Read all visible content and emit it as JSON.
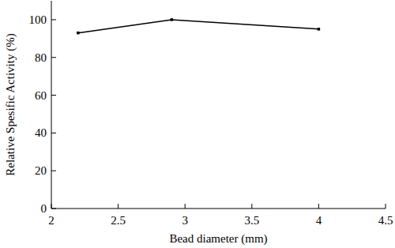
{
  "chart_data": {
    "type": "line",
    "x_label": "Bead diameter (mm)",
    "y_label": "Relative Spesific Activity (%)",
    "x": [
      2.2,
      2.9,
      4
    ],
    "values": [
      93,
      100,
      95
    ],
    "color": "#000000",
    "marker": "square",
    "xlim": [
      2,
      4.5
    ],
    "xticks": [
      2,
      2.5,
      3,
      3.5,
      4,
      4.5
    ],
    "ylim": [
      0,
      110
    ],
    "yticks": [
      0,
      20,
      40,
      60,
      80,
      100
    ],
    "grid": false
  }
}
